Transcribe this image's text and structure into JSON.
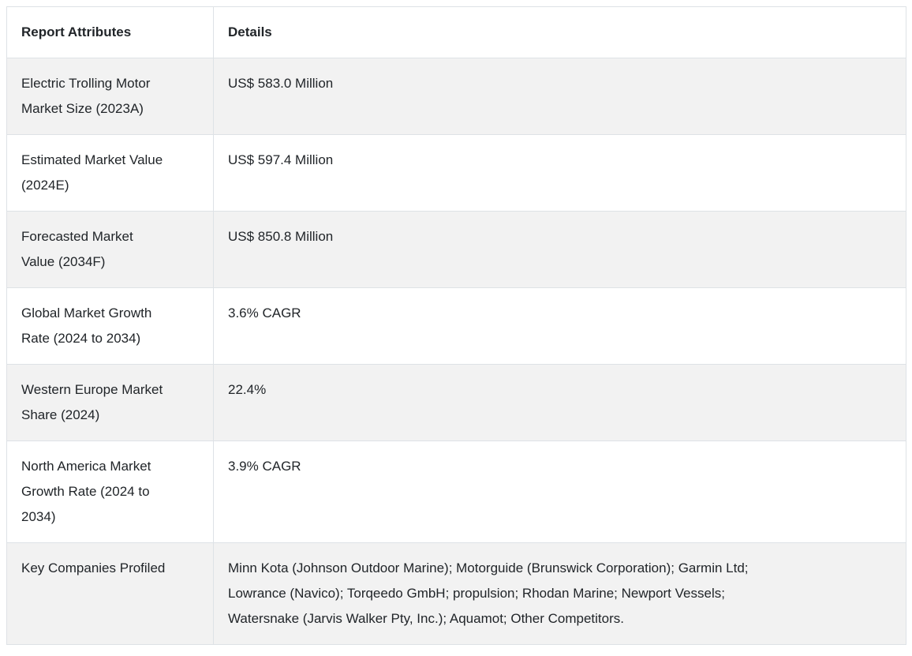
{
  "table": {
    "columns": [
      {
        "label": "Report Attributes"
      },
      {
        "label": "Details"
      }
    ],
    "rows": [
      {
        "attribute": "Electric Trolling Motor Market Size (2023A)",
        "detail": "US$ 583.0 Million"
      },
      {
        "attribute": "Estimated Market Value (2024E)",
        "detail": "US$ 597.4 Million"
      },
      {
        "attribute": "Forecasted Market Value (2034F)",
        "detail": "US$ 850.8 Million"
      },
      {
        "attribute": "Global Market Growth Rate (2024 to 2034)",
        "detail": "3.6% CAGR"
      },
      {
        "attribute": "Western Europe Market Share (2024)",
        "detail": "22.4%"
      },
      {
        "attribute": "North America Market Growth Rate (2024 to 2034)",
        "detail": "3.9% CAGR"
      },
      {
        "attribute": "Key Companies Profiled",
        "detail": "Minn Kota (Johnson Outdoor Marine); Motorguide (Brunswick Corporation); Garmin Ltd; Lowrance (Navico); Torqeedo GmbH; propulsion; Rhodan Marine; Newport Vessels; Watersnake (Jarvis Walker Pty, Inc.); Aquamot; Other Competitors."
      }
    ],
    "colors": {
      "row_alt_bg": "#f2f2f2",
      "border": "#dee2e6",
      "text": "#212529",
      "header_bg": "#ffffff"
    }
  }
}
